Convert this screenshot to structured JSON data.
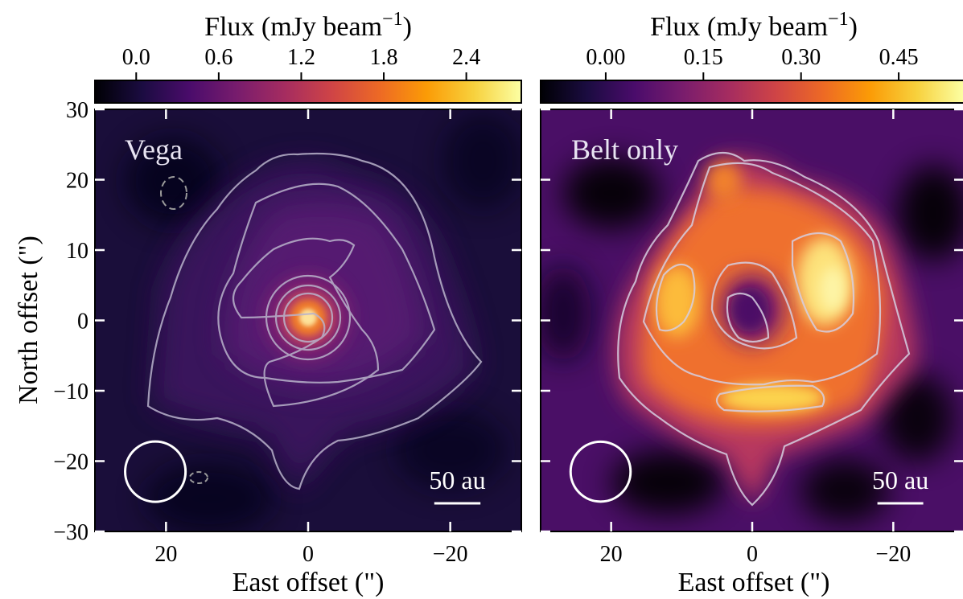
{
  "colors": {
    "map": [
      "#000004",
      "#1b0c41",
      "#4a0c6b",
      "#781c6d",
      "#a52c60",
      "#cf4446",
      "#ed6925",
      "#fb9b06",
      "#f7d13d",
      "#fcffa4"
    ],
    "contour": "#b9b3cb",
    "beam": "#ffffff",
    "negative_contour": "#9a9a9a"
  },
  "chart_data": [
    {
      "type": "heatmap",
      "panel": "Vega",
      "label": "Vega",
      "colorbar": {
        "label": "Flux (mJy beam",
        "label_exp": "−1",
        "label_close": ")",
        "range": [
          -0.3,
          2.8
        ],
        "ticks": [
          0.0,
          0.6,
          1.2,
          1.8,
          2.4
        ],
        "tick_labels": [
          "0.0",
          "0.6",
          "1.2",
          "1.8",
          "2.4"
        ]
      },
      "xlabel": "East offset (\")",
      "ylabel": "North offset (\")",
      "xlim": [
        30,
        -30
      ],
      "ylim": [
        -30,
        30
      ],
      "x_ticks": [
        20,
        0,
        -20
      ],
      "x_tick_labels": [
        "20",
        "0",
        "−20"
      ],
      "y_ticks": [
        30,
        20,
        10,
        0,
        -10,
        -20,
        -30
      ],
      "y_tick_labels": [
        "30",
        "20",
        "10",
        "0",
        "−10",
        "−20",
        "−30"
      ],
      "beam": {
        "x": 21.5,
        "y": -21.5,
        "diameter_arcsec": 8.5
      },
      "scale_bar": {
        "label": "50 au",
        "length_arcsec": 6.5,
        "x_center": -21,
        "y": -26
      }
    },
    {
      "type": "heatmap",
      "panel": "Belt only",
      "label": "Belt only",
      "colorbar": {
        "label": "Flux (mJy beam",
        "label_exp": "−1",
        "label_close": ")",
        "range": [
          -0.1,
          0.55
        ],
        "ticks": [
          0.0,
          0.15,
          0.3,
          0.45
        ],
        "tick_labels": [
          "0.00",
          "0.15",
          "0.30",
          "0.45"
        ]
      },
      "xlabel": "East offset (\")",
      "xlim": [
        30,
        -30
      ],
      "ylim": [
        -30,
        30
      ],
      "x_ticks": [
        20,
        0,
        -20
      ],
      "x_tick_labels": [
        "20",
        "0",
        "−20"
      ],
      "y_ticks": [
        30,
        20,
        10,
        0,
        -10,
        -20,
        -30
      ],
      "beam": {
        "x": 21.5,
        "y": -21.5,
        "diameter_arcsec": 8.5
      },
      "scale_bar": {
        "label": "50 au",
        "length_arcsec": 6.5,
        "x_center": -21,
        "y": -26
      }
    }
  ]
}
